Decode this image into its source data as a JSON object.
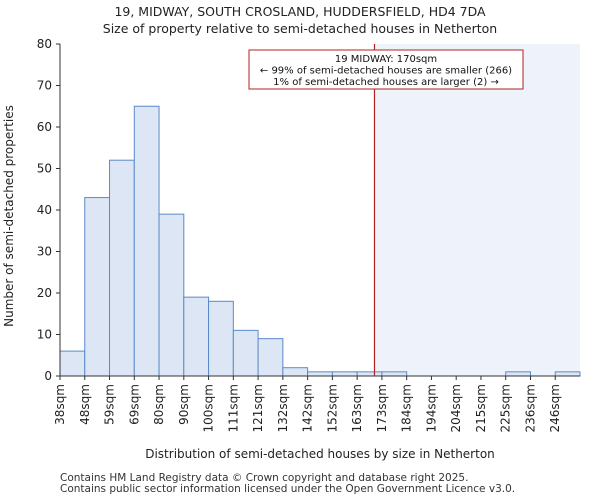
{
  "title": "19, MIDWAY, SOUTH CROSLAND, HUDDERSFIELD, HD4 7DA",
  "subtitle": "Size of property relative to semi-detached houses in Netherton",
  "footer": {
    "line1": "Contains HM Land Registry data © Crown copyright and database right 2025.",
    "line2": "Contains public sector information licensed under the Open Government Licence v3.0."
  },
  "chart_data": {
    "type": "bar",
    "xlabel": "Distribution of semi-detached houses by size in Netherton",
    "ylabel": "Number of semi-detached properties",
    "ylim": [
      0,
      80
    ],
    "yticks": [
      0,
      10,
      20,
      30,
      40,
      50,
      60,
      70,
      80
    ],
    "categories": [
      "38sqm",
      "48sqm",
      "59sqm",
      "69sqm",
      "80sqm",
      "90sqm",
      "100sqm",
      "111sqm",
      "121sqm",
      "132sqm",
      "142sqm",
      "152sqm",
      "163sqm",
      "173sqm",
      "184sqm",
      "194sqm",
      "204sqm",
      "215sqm",
      "225sqm",
      "236sqm",
      "246sqm"
    ],
    "values": [
      6,
      43,
      52,
      65,
      39,
      19,
      18,
      11,
      9,
      2,
      1,
      1,
      1,
      1,
      0,
      0,
      0,
      0,
      1,
      0,
      1
    ],
    "marker": {
      "value_sqm": 170,
      "line1": "19 MIDWAY: 170sqm",
      "line2": "← 99% of semi-detached houses are smaller (266)",
      "line3": "1% of semi-detached houses are larger (2) →"
    },
    "colors": {
      "bar_fill": "#dde6f4",
      "bar_stroke": "#5b8ac9",
      "marker": "#b22222",
      "highlight": "#eef2fb"
    },
    "grid": false
  }
}
